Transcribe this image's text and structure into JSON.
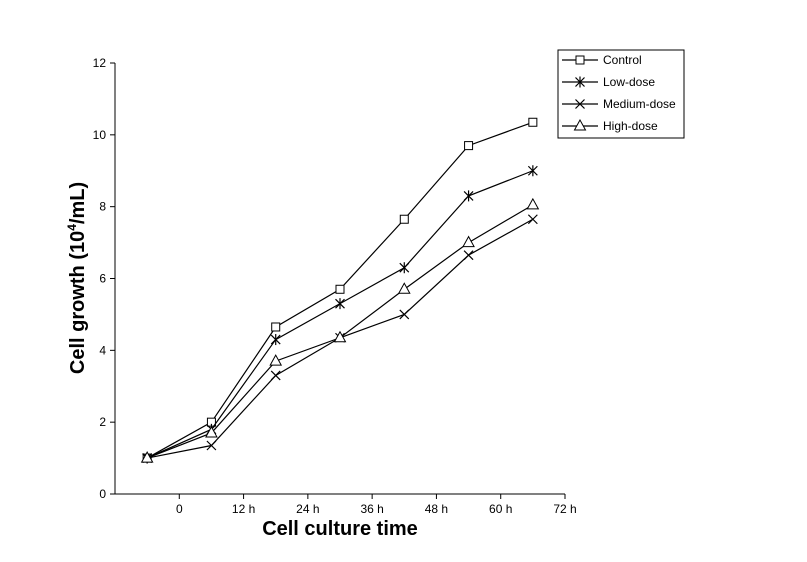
{
  "chart_data": {
    "type": "line",
    "title": "",
    "xlabel": "Cell culture time",
    "ylabel": "Cell growth (10",
    "ylabel_sup": "4",
    "ylabel_tail": "/mL)",
    "xlim": [
      -12,
      72
    ],
    "ylim": [
      0,
      12
    ],
    "x_ticks": [
      0,
      12,
      24,
      36,
      48,
      60,
      72
    ],
    "x_tick_labels": [
      "0",
      "12 h",
      "24 h",
      "36 h",
      "48 h",
      "60 h",
      "72 h"
    ],
    "y_ticks": [
      0,
      2,
      4,
      6,
      8,
      10,
      12
    ],
    "y_tick_labels": [
      "0",
      "2",
      "4",
      "6",
      "8",
      "10",
      "12"
    ],
    "legend_position": "top-right",
    "grid": false,
    "x": [
      -6,
      6,
      18,
      30,
      42,
      54,
      66
    ],
    "series": [
      {
        "name": "Control",
        "marker": "square",
        "values": [
          1.0,
          2.0,
          4.65,
          5.7,
          7.65,
          9.7,
          10.35
        ]
      },
      {
        "name": "Low-dose",
        "marker": "asterisk",
        "values": [
          1.0,
          1.8,
          4.3,
          5.3,
          6.3,
          8.3,
          9.0
        ]
      },
      {
        "name": "Medium-dose",
        "marker": "x",
        "values": [
          1.0,
          1.35,
          3.3,
          4.35,
          5.0,
          6.65,
          7.65
        ]
      },
      {
        "name": "High-dose",
        "marker": "triangle",
        "values": [
          1.0,
          1.7,
          3.7,
          4.35,
          5.7,
          7.0,
          8.05
        ]
      }
    ],
    "colors": {
      "line": "#000000",
      "background": "#ffffff"
    }
  }
}
